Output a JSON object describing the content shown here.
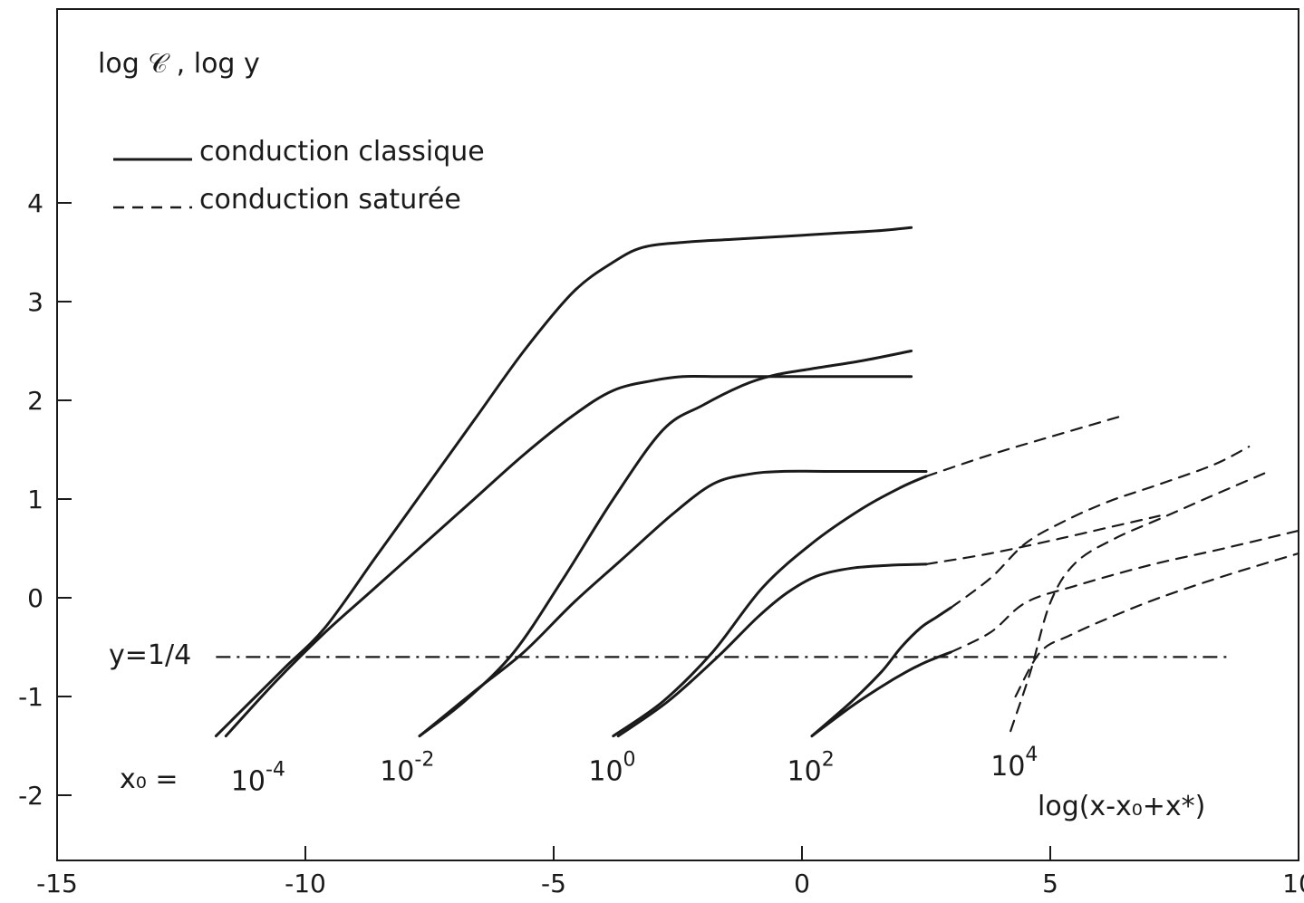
{
  "chart_data": {
    "type": "line",
    "title": "",
    "ylabel": "log 𝒞 , log y",
    "xlabel": "log(x-x₀+x*)",
    "xlim": [
      -15,
      10
    ],
    "ylim": [
      -2.6,
      5.1
    ],
    "xticks": [
      -15,
      -10,
      -5,
      0,
      5,
      10
    ],
    "xtick_labels": [
      "-15",
      "-10",
      "-5",
      "0",
      "5",
      "10"
    ],
    "yticks": [
      -2,
      -1,
      0,
      1,
      2,
      3,
      4
    ],
    "ytick_labels": [
      "-2",
      "-1",
      "0",
      "1",
      "2",
      "3",
      "4"
    ],
    "grid": false,
    "legend_position": "top-left",
    "legend": [
      {
        "label": "conduction classique",
        "style": "solid"
      },
      {
        "label": "conduction saturée",
        "style": "dashed"
      }
    ],
    "reference_line": {
      "label": "y=1/4",
      "y": -0.6,
      "x_start": -11.8,
      "x_end": 8.6,
      "style": "dashdot"
    },
    "x0_prefix": "x₀ =",
    "curve_labels": [
      {
        "text": "10",
        "exp": "-4",
        "x": -11.5,
        "y": -1.95
      },
      {
        "text": "10",
        "exp": "-2",
        "x": -8.5,
        "y": -1.85
      },
      {
        "text": "10",
        "exp": "0",
        "x": -4.3,
        "y": -1.85
      },
      {
        "text": "10",
        "exp": "2",
        "x": -0.3,
        "y": -1.85
      },
      {
        "text": "10",
        "exp": "4",
        "x": 3.8,
        "y": -1.8
      }
    ],
    "series": [
      {
        "style": "solid",
        "x": [
          -11.8,
          -11,
          -10.4,
          -9.6,
          -8.6,
          -7.6,
          -6.6,
          -5.6,
          -4.6,
          -3.8,
          -3.2,
          -2.4,
          -1.4,
          -0.4,
          0.6,
          1.6,
          2.2
        ],
        "y": [
          -1.4,
          -1.0,
          -0.7,
          -0.3,
          0.4,
          1.1,
          1.8,
          2.5,
          3.1,
          3.4,
          3.55,
          3.6,
          3.63,
          3.66,
          3.69,
          3.72,
          3.75
        ]
      },
      {
        "style": "solid",
        "x": [
          -11.6,
          -10.6,
          -9.6,
          -8.6,
          -7.6,
          -6.6,
          -5.6,
          -4.6,
          -3.8,
          -3.0,
          -2.4,
          -1.6,
          -0.6,
          0.4,
          1.4,
          2.2
        ],
        "y": [
          -1.4,
          -0.85,
          -0.35,
          0.1,
          0.55,
          1.0,
          1.45,
          1.85,
          2.1,
          2.2,
          2.24,
          2.24,
          2.24,
          2.24,
          2.24,
          2.24
        ]
      },
      {
        "style": "solid",
        "x": [
          -7.7,
          -6.8,
          -5.8,
          -4.8,
          -3.8,
          -2.8,
          -2.0,
          -1.2,
          -0.6,
          0.2,
          1.2,
          2.2
        ],
        "y": [
          -1.4,
          -1.05,
          -0.55,
          0.2,
          1.0,
          1.7,
          1.95,
          2.15,
          2.25,
          2.32,
          2.4,
          2.5
        ]
      },
      {
        "style": "solid",
        "x": [
          -7.7,
          -6.6,
          -5.6,
          -4.6,
          -3.6,
          -2.6,
          -1.8,
          -1.1,
          -0.4,
          0.6,
          1.6,
          2.5
        ],
        "y": [
          -1.4,
          -0.95,
          -0.55,
          -0.05,
          0.4,
          0.85,
          1.15,
          1.25,
          1.28,
          1.28,
          1.28,
          1.28
        ]
      },
      {
        "style": "solid",
        "x": [
          -3.8,
          -2.8,
          -1.8,
          -0.8,
          0.2,
          1.2,
          2.0,
          2.5
        ],
        "y": [
          -1.4,
          -1.05,
          -0.55,
          0.1,
          0.55,
          0.9,
          1.12,
          1.23
        ]
      },
      {
        "style": "solid",
        "x": [
          -3.7,
          -2.7,
          -1.7,
          -0.9,
          -0.3,
          0.3,
          1.0,
          1.8,
          2.5
        ],
        "y": [
          -1.4,
          -1.05,
          -0.6,
          -0.2,
          0.05,
          0.22,
          0.3,
          0.33,
          0.34
        ]
      },
      {
        "style": "solid",
        "x": [
          0.2,
          1.0,
          1.6,
          2.0,
          2.4,
          2.7,
          3.0
        ],
        "y": [
          -1.4,
          -1.05,
          -0.75,
          -0.5,
          -0.3,
          -0.2,
          -0.1
        ]
      },
      {
        "style": "solid",
        "x": [
          0.2,
          1.0,
          1.6,
          2.1,
          2.5,
          3.0
        ],
        "y": [
          -1.4,
          -1.1,
          -0.9,
          -0.75,
          -0.65,
          -0.55
        ]
      },
      {
        "style": "dashed",
        "x": [
          2.5,
          3.8,
          5.0,
          6.5
        ],
        "y": [
          1.23,
          1.45,
          1.63,
          1.85
        ]
      },
      {
        "style": "dashed",
        "x": [
          2.5,
          3.8,
          5.2,
          6.5,
          7.2
        ],
        "y": [
          0.34,
          0.45,
          0.6,
          0.75,
          0.83
        ]
      },
      {
        "style": "dashed",
        "x": [
          3.0,
          3.8,
          4.5,
          5.3,
          6.2,
          7.2,
          8.3,
          9.0
        ],
        "y": [
          -0.1,
          0.2,
          0.55,
          0.78,
          0.98,
          1.15,
          1.35,
          1.53
        ]
      },
      {
        "style": "dashed",
        "x": [
          3.0,
          3.8,
          4.5,
          5.5,
          7.0,
          8.5,
          10.0
        ],
        "y": [
          -0.55,
          -0.35,
          -0.05,
          0.12,
          0.33,
          0.5,
          0.68
        ]
      },
      {
        "style": "dashed",
        "x": [
          4.2,
          4.6,
          5.0,
          5.5,
          6.3,
          7.3,
          8.2,
          9.4
        ],
        "y": [
          -1.35,
          -0.75,
          -0.05,
          0.35,
          0.6,
          0.82,
          1.02,
          1.28
        ]
      },
      {
        "style": "dashed",
        "x": [
          4.3,
          4.8,
          5.4,
          6.2,
          7.2,
          8.5,
          10.0
        ],
        "y": [
          -1.0,
          -0.55,
          -0.38,
          -0.2,
          0.0,
          0.22,
          0.45
        ]
      }
    ]
  }
}
